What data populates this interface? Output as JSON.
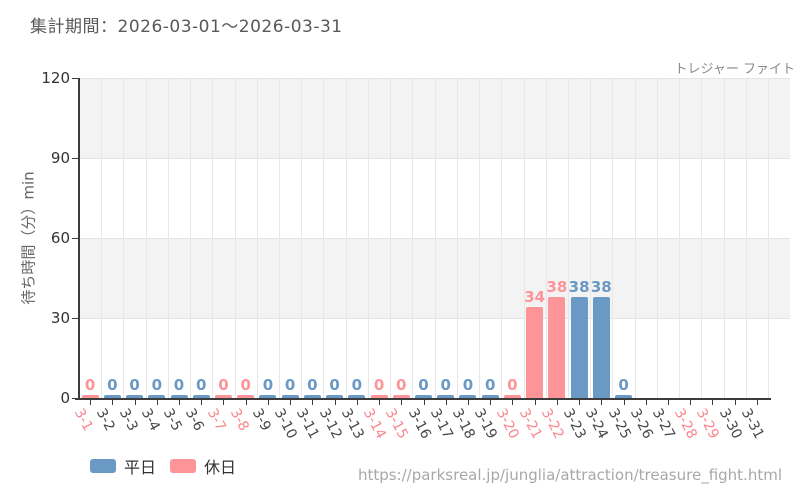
{
  "header": {
    "title": "集計期間：2026-03-01～2026-03-31",
    "attraction_name": "トレジャー ファイト"
  },
  "chart_data": {
    "type": "bar",
    "title": "集計期間：2026-03-01～2026-03-31",
    "series_label": "トレジャー ファイト",
    "xlabel": "",
    "ylabel": "待ち時間（分）min",
    "ylim": [
      0,
      120
    ],
    "yticks": [
      0,
      30,
      60,
      90,
      120
    ],
    "grid": true,
    "legend_position": "bottom-left",
    "categories": [
      "3-1",
      "3-2",
      "3-3",
      "3-4",
      "3-5",
      "3-6",
      "3-7",
      "3-8",
      "3-9",
      "3-10",
      "3-11",
      "3-12",
      "3-13",
      "3-14",
      "3-15",
      "3-16",
      "3-17",
      "3-18",
      "3-19",
      "3-20",
      "3-21",
      "3-22",
      "3-23",
      "3-24",
      "3-25",
      "3-26",
      "3-27",
      "3-28",
      "3-29",
      "3-30",
      "3-31"
    ],
    "values": [
      0,
      0,
      0,
      0,
      0,
      0,
      0,
      0,
      0,
      0,
      0,
      0,
      0,
      0,
      0,
      0,
      0,
      0,
      0,
      0,
      34,
      38,
      38,
      38,
      0,
      null,
      null,
      null,
      null,
      null,
      null
    ],
    "day_types": [
      "holiday",
      "weekday",
      "weekday",
      "weekday",
      "weekday",
      "weekday",
      "holiday",
      "holiday",
      "weekday",
      "weekday",
      "weekday",
      "weekday",
      "weekday",
      "holiday",
      "holiday",
      "weekday",
      "weekday",
      "weekday",
      "weekday",
      "holiday",
      "holiday",
      "holiday",
      "weekday",
      "weekday",
      "weekday",
      "weekday",
      "weekday",
      "holiday",
      "holiday",
      "weekday",
      "weekday"
    ],
    "colors": {
      "weekday": "#6999c4",
      "holiday": "#fc9498"
    },
    "axis_label_colors": {
      "weekday": "#474747",
      "holiday": "#f9868d"
    },
    "band_fill": "#f3f3f3",
    "legend": [
      {
        "label": "平日",
        "type": "weekday"
      },
      {
        "label": "休日",
        "type": "holiday"
      }
    ]
  },
  "footer": {
    "url": "https://parksreal.jp/junglia/attraction/treasure_fight.html"
  }
}
